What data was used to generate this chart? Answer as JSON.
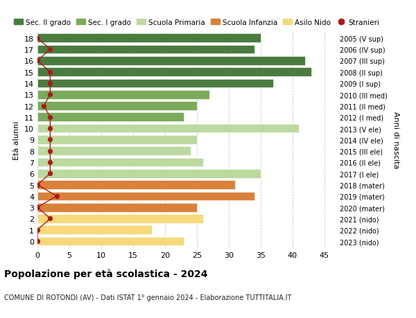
{
  "ages": [
    18,
    17,
    16,
    15,
    14,
    13,
    12,
    11,
    10,
    9,
    8,
    7,
    6,
    5,
    4,
    3,
    2,
    1,
    0
  ],
  "years": [
    "2005 (V sup)",
    "2006 (IV sup)",
    "2007 (III sup)",
    "2008 (II sup)",
    "2009 (I sup)",
    "2010 (III med)",
    "2011 (II med)",
    "2012 (I med)",
    "2013 (V ele)",
    "2014 (IV ele)",
    "2015 (III ele)",
    "2016 (II ele)",
    "2017 (I ele)",
    "2018 (mater)",
    "2019 (mater)",
    "2020 (mater)",
    "2021 (nido)",
    "2022 (nido)",
    "2023 (nido)"
  ],
  "bar_values": [
    35,
    34,
    42,
    43,
    37,
    27,
    25,
    23,
    41,
    25,
    24,
    26,
    35,
    31,
    34,
    25,
    26,
    18,
    23
  ],
  "bar_colors": [
    "#4a7c40",
    "#4a7c40",
    "#4a7c40",
    "#4a7c40",
    "#4a7c40",
    "#7aaa5a",
    "#7aaa5a",
    "#7aaa5a",
    "#bcd9a0",
    "#bcd9a0",
    "#bcd9a0",
    "#bcd9a0",
    "#bcd9a0",
    "#d9813a",
    "#d9813a",
    "#d9813a",
    "#f5d97a",
    "#f5d97a",
    "#f5d97a"
  ],
  "stranieri_x": [
    0,
    2,
    0,
    2,
    2,
    2,
    1,
    2,
    2,
    2,
    2,
    2,
    2,
    0,
    3,
    0,
    2,
    0,
    0
  ],
  "legend_labels": [
    "Sec. II grado",
    "Sec. I grado",
    "Scuola Primaria",
    "Scuola Infanzia",
    "Asilo Nido",
    "Stranieri"
  ],
  "legend_colors": [
    "#4a7c40",
    "#7aaa5a",
    "#bcd9a0",
    "#d9813a",
    "#f5d97a",
    "#aa1a1a"
  ],
  "title": "Popolazione per età scolastica - 2024",
  "subtitle": "COMUNE DI ROTONDI (AV) - Dati ISTAT 1° gennaio 2024 - Elaborazione TUTTITALIA.IT",
  "ylabel": "Età alunni",
  "ylabel2": "Anni di nascita",
  "xlim": [
    0,
    47
  ],
  "xticks": [
    0,
    5,
    10,
    15,
    20,
    25,
    30,
    35,
    40,
    45
  ],
  "bar_height": 0.78,
  "stranieri_color": "#aa1a1a",
  "grid_color": "#cccccc",
  "bg_color": "#ffffff"
}
